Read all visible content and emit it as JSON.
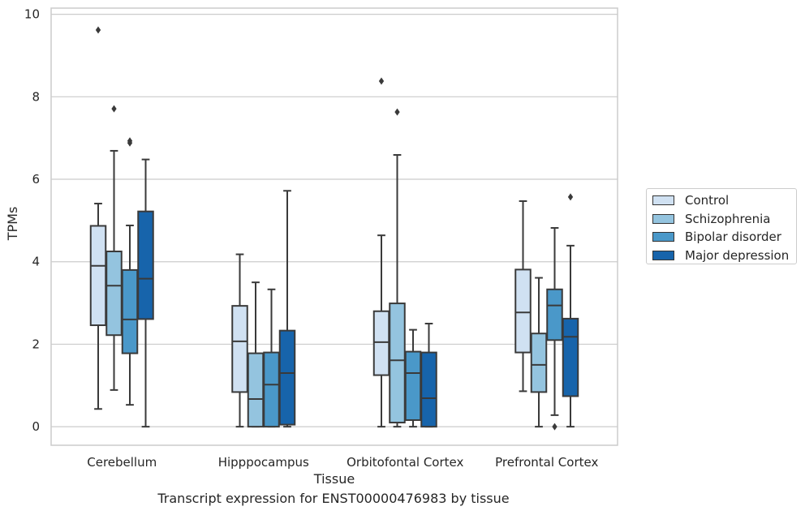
{
  "chart_data": {
    "type": "box",
    "xlabel": "Tissue",
    "ylabel": "TPMs",
    "caption": "Transcript expression for ENST00000476983 by tissue",
    "ylim": [
      -0.45,
      10.15
    ],
    "yticks": [
      "0",
      "2",
      "4",
      "6",
      "8",
      "10"
    ],
    "grid": true,
    "legend_position": "right",
    "categories": [
      "Cerebellum",
      "Hipppocampus",
      "Orbitofontal Cortex",
      "Prefrontal Cortex"
    ],
    "series": [
      {
        "name": "Control",
        "color": "#d0e1f2",
        "boxes": [
          {
            "whislo": 0.43,
            "q1": 2.46,
            "med": 3.9,
            "q3": 4.87,
            "whishi": 5.41,
            "fliers": [
              9.62
            ]
          },
          {
            "whislo": 0.0,
            "q1": 0.84,
            "med": 2.07,
            "q3": 2.93,
            "whishi": 4.18,
            "fliers": []
          },
          {
            "whislo": 0.0,
            "q1": 1.25,
            "med": 2.05,
            "q3": 2.8,
            "whishi": 4.64,
            "fliers": [
              8.38
            ]
          },
          {
            "whislo": 0.86,
            "q1": 1.8,
            "med": 2.77,
            "q3": 3.81,
            "whishi": 5.47,
            "fliers": []
          }
        ]
      },
      {
        "name": "Schizophrenia",
        "color": "#94c4df",
        "boxes": [
          {
            "whislo": 0.89,
            "q1": 2.22,
            "med": 3.42,
            "q3": 4.25,
            "whishi": 6.69,
            "fliers": [
              7.71
            ]
          },
          {
            "whislo": 0.0,
            "q1": 0.0,
            "med": 0.67,
            "q3": 1.78,
            "whishi": 3.5,
            "fliers": []
          },
          {
            "whislo": 0.0,
            "q1": 0.1,
            "med": 1.61,
            "q3": 2.99,
            "whishi": 6.59,
            "fliers": [
              7.63
            ]
          },
          {
            "whislo": 0.0,
            "q1": 0.84,
            "med": 1.5,
            "q3": 2.26,
            "whishi": 3.61,
            "fliers": []
          }
        ]
      },
      {
        "name": "Bipolar disorder",
        "color": "#4a98c9",
        "boxes": [
          {
            "whislo": 0.53,
            "q1": 1.78,
            "med": 2.6,
            "q3": 3.8,
            "whishi": 4.88,
            "fliers": [
              6.88,
              6.93
            ]
          },
          {
            "whislo": 0.0,
            "q1": 0.0,
            "med": 1.02,
            "q3": 1.8,
            "whishi": 3.33,
            "fliers": []
          },
          {
            "whislo": 0.0,
            "q1": 0.16,
            "med": 1.3,
            "q3": 1.82,
            "whishi": 2.35,
            "fliers": []
          },
          {
            "whislo": 0.28,
            "q1": 2.1,
            "med": 2.94,
            "q3": 3.33,
            "whishi": 4.82,
            "fliers": [
              0.0
            ]
          }
        ]
      },
      {
        "name": "Major depression",
        "color": "#1764ab",
        "boxes": [
          {
            "whislo": 0.0,
            "q1": 2.61,
            "med": 3.59,
            "q3": 5.22,
            "whishi": 6.48,
            "fliers": []
          },
          {
            "whislo": 0.0,
            "q1": 0.05,
            "med": 1.3,
            "q3": 2.33,
            "whishi": 5.72,
            "fliers": []
          },
          {
            "whislo": 0.0,
            "q1": 0.0,
            "med": 0.69,
            "q3": 1.8,
            "whishi": 2.5,
            "fliers": []
          },
          {
            "whislo": 0.0,
            "q1": 0.74,
            "med": 2.18,
            "q3": 2.62,
            "whishi": 4.39,
            "fliers": [
              5.57
            ]
          }
        ]
      }
    ]
  }
}
